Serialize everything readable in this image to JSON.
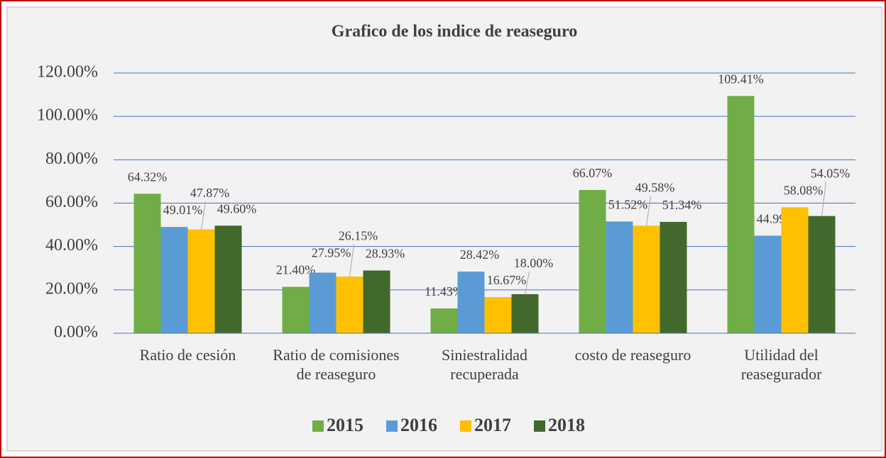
{
  "chart_data": {
    "type": "bar",
    "title": "Grafico de los indice de reaseguro",
    "categories": [
      "Ratio de cesión",
      "Ratio de comisiones de reaseguro",
      "Siniestralidad recuperada",
      "costo de reaseguro",
      "Utilidad del reasegurador"
    ],
    "series": [
      {
        "name": "2015",
        "color": "#70ad47",
        "values": [
          64.32,
          21.4,
          11.43,
          66.07,
          109.41
        ],
        "value_labels": [
          "64.32%",
          "21.40%",
          "11.43%",
          "66.07%",
          "109.41%"
        ]
      },
      {
        "name": "2016",
        "color": "#5b9bd5",
        "values": [
          49.01,
          27.95,
          28.42,
          51.52,
          44.99
        ],
        "value_labels": [
          "49.01%",
          "27.95%",
          "28.42%",
          "51.52%",
          "44.99%"
        ]
      },
      {
        "name": "2017",
        "color": "#ffc000",
        "values": [
          47.87,
          26.15,
          16.67,
          49.58,
          58.08
        ],
        "value_labels": [
          "47.87%",
          "26.15%",
          "16.67%",
          "49.58%",
          "58.08%"
        ]
      },
      {
        "name": "2018",
        "color": "#43682b",
        "values": [
          49.6,
          28.93,
          18.0,
          51.34,
          54.05
        ],
        "value_labels": [
          "49.60%",
          "28.93%",
          "18.00%",
          "51.34%",
          "54.05%"
        ]
      }
    ],
    "ylim": [
      0,
      120
    ],
    "yticks": [
      {
        "value": 0,
        "label": "0.00%"
      },
      {
        "value": 20,
        "label": "20.00%"
      },
      {
        "value": 40,
        "label": "40.00%"
      },
      {
        "value": 60,
        "label": "60.00%"
      },
      {
        "value": 80,
        "label": "80.00%"
      },
      {
        "value": 100,
        "label": "100.00%"
      },
      {
        "value": 120,
        "label": "120.00%"
      }
    ],
    "grid": true,
    "legend": "bottom"
  }
}
